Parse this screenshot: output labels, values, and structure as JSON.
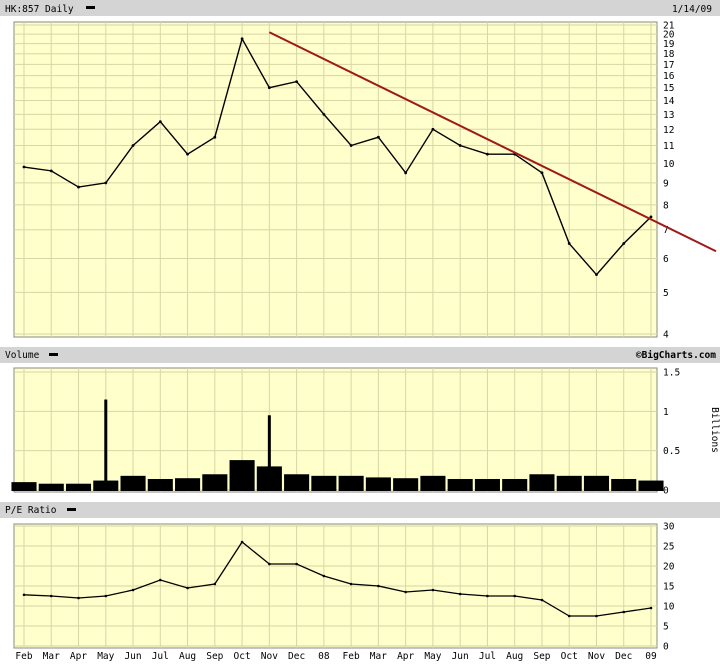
{
  "header": {
    "symbol_label": "HK:857 Daily",
    "date": "1/14/09"
  },
  "volume_panel": {
    "label": "Volume",
    "unit_label": "Billions",
    "watermark": "©BigCharts.com"
  },
  "pe_panel": {
    "label": "P/E Ratio"
  },
  "colors": {
    "plot_bg": "#ffffcc",
    "grid": "#d6d6a6",
    "header_bg": "#d4d4d4",
    "trendline": "#a01818",
    "series": "#000000"
  },
  "x_axis_labels": [
    "Feb",
    "Mar",
    "Apr",
    "May",
    "Jun",
    "Jul",
    "Aug",
    "Sep",
    "Oct",
    "Nov",
    "Dec",
    "08",
    "Feb",
    "Mar",
    "Apr",
    "May",
    "Jun",
    "Jul",
    "Aug",
    "Sep",
    "Oct",
    "Nov",
    "Dec",
    "09"
  ],
  "chart_data": [
    {
      "type": "line",
      "scale": "log",
      "ylim": [
        4,
        21
      ],
      "y_ticks": [
        4,
        5,
        6,
        7,
        8,
        9,
        10,
        11,
        12,
        13,
        14,
        15,
        16,
        17,
        18,
        19,
        20,
        21
      ],
      "categories": [
        "Feb",
        "Mar",
        "Apr",
        "May",
        "Jun",
        "Jul",
        "Aug",
        "Sep",
        "Oct",
        "Nov",
        "Dec",
        "08",
        "Feb",
        "Mar",
        "Apr",
        "May",
        "Jun",
        "Jul",
        "Aug",
        "Sep",
        "Oct",
        "Nov",
        "Dec",
        "09"
      ],
      "series": [
        {
          "values": [
            9.8,
            9.6,
            8.8,
            9.0,
            11.0,
            12.5,
            10.5,
            11.5,
            19.5,
            15.0,
            15.5,
            13.0,
            11.0,
            11.5,
            9.5,
            12.0,
            11.0,
            10.5,
            10.5,
            9.5,
            6.5,
            5.5,
            6.5,
            7.5
          ]
        }
      ],
      "annotations": [
        {
          "type": "trendline",
          "from": [
            "Nov",
            20.2
          ],
          "to": [
            "09",
            7.4
          ]
        }
      ]
    },
    {
      "type": "bar",
      "ylim": [
        0,
        1.5
      ],
      "y_ticks": [
        0,
        0.5,
        1,
        1.5
      ],
      "ylabel": "Billions",
      "categories": [
        "Feb",
        "Mar",
        "Apr",
        "May",
        "Jun",
        "Jul",
        "Aug",
        "Sep",
        "Oct",
        "Nov",
        "Dec",
        "08",
        "Feb",
        "Mar",
        "Apr",
        "May",
        "Jun",
        "Jul",
        "Aug",
        "Sep",
        "Oct",
        "Nov",
        "Dec",
        "09"
      ],
      "values": [
        0.1,
        0.08,
        0.08,
        0.12,
        0.18,
        0.14,
        0.15,
        0.2,
        0.38,
        0.3,
        0.2,
        0.18,
        0.18,
        0.16,
        0.15,
        0.18,
        0.14,
        0.14,
        0.14,
        0.2,
        0.18,
        0.18,
        0.14,
        0.12
      ],
      "peaks": [
        {
          "at": "May",
          "value": 1.15
        },
        {
          "at": "Nov",
          "value": 0.95
        }
      ]
    },
    {
      "type": "line",
      "ylim": [
        0,
        30
      ],
      "y_ticks": [
        0,
        5,
        10,
        15,
        20,
        25,
        30
      ],
      "categories": [
        "Feb",
        "Mar",
        "Apr",
        "May",
        "Jun",
        "Jul",
        "Aug",
        "Sep",
        "Oct",
        "Nov",
        "Dec",
        "08",
        "Feb",
        "Mar",
        "Apr",
        "May",
        "Jun",
        "Jul",
        "Aug",
        "Sep",
        "Oct",
        "Nov",
        "Dec",
        "09"
      ],
      "series": [
        {
          "values": [
            12.8,
            12.5,
            12.0,
            12.5,
            14.0,
            16.5,
            14.5,
            15.5,
            26.0,
            20.5,
            20.5,
            17.5,
            15.5,
            15.0,
            13.5,
            14.0,
            13.0,
            12.5,
            12.5,
            11.5,
            7.5,
            7.5,
            8.5,
            9.5
          ]
        }
      ]
    }
  ]
}
